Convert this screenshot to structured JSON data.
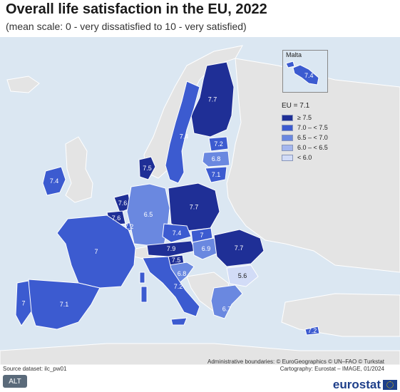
{
  "header": {
    "title": "Overall life satisfaction in the EU, 2022",
    "subtitle": "(mean scale: 0 - very dissatisfied to 10 - very satisfied)"
  },
  "legend": {
    "eu_average": "EU = 7.1",
    "classes": [
      {
        "label": "≥ 7.5",
        "color": "#1f2f96"
      },
      {
        "label": "7.0 – < 7.5",
        "color": "#3c5bd0"
      },
      {
        "label": "6.5 – < 7.0",
        "color": "#6a88e0"
      },
      {
        "label": "6.0 – < 6.5",
        "color": "#a4b6ee"
      },
      {
        "label": "< 6.0",
        "color": "#d2dcf7"
      }
    ]
  },
  "colors": {
    "sea": "#dbe7f2",
    "non_eu_land": "#e4e4e4",
    "border": "#ffffff",
    "label_dark_bg": "#ffffff",
    "label_light_bg": "#1a1a1a"
  },
  "countries": [
    {
      "name": "Finland",
      "value": "7.7",
      "class": 0
    },
    {
      "name": "Sweden",
      "value": "7.4",
      "class": 1
    },
    {
      "name": "Estonia",
      "value": "7.2",
      "class": 1
    },
    {
      "name": "Latvia",
      "value": "6.8",
      "class": 2
    },
    {
      "name": "Lithuania",
      "value": "7.1",
      "class": 1
    },
    {
      "name": "Denmark",
      "value": "7.5",
      "class": 0
    },
    {
      "name": "Ireland",
      "value": "7.4",
      "class": 1
    },
    {
      "name": "Netherlands",
      "value": "7.6",
      "class": 0
    },
    {
      "name": "Belgium",
      "value": "7.6",
      "class": 0
    },
    {
      "name": "Luxembourg",
      "value": "7.2",
      "class": 1
    },
    {
      "name": "Germany",
      "value": "6.5",
      "class": 2
    },
    {
      "name": "Poland",
      "value": "7.7",
      "class": 0
    },
    {
      "name": "Czechia",
      "value": "7.4",
      "class": 1
    },
    {
      "name": "Slovakia",
      "value": "7",
      "class": 1
    },
    {
      "name": "Austria",
      "value": "7.9",
      "class": 0
    },
    {
      "name": "Hungary",
      "value": "6.9",
      "class": 2
    },
    {
      "name": "Slovenia",
      "value": "7.5",
      "class": 0
    },
    {
      "name": "Croatia",
      "value": "6.8",
      "class": 2
    },
    {
      "name": "Romania",
      "value": "7.7",
      "class": 0
    },
    {
      "name": "Bulgaria",
      "value": "5.6",
      "class": 4
    },
    {
      "name": "France",
      "value": "7",
      "class": 1
    },
    {
      "name": "Italy",
      "value": "7.2",
      "class": 1
    },
    {
      "name": "Spain",
      "value": "7.1",
      "class": 1
    },
    {
      "name": "Portugal",
      "value": "7",
      "class": 1
    },
    {
      "name": "Greece",
      "value": "6.7",
      "class": 2
    },
    {
      "name": "Malta",
      "value": "7.4",
      "class": 1
    },
    {
      "name": "Cyprus",
      "value": "7.2",
      "class": 1
    }
  ],
  "inset": {
    "label": "Malta",
    "value": "7.4"
  },
  "footer": {
    "boundaries": "Administrative boundaries: © EuroGeographics © UN–FAO © Turkstat",
    "cartography": "Cartography: Eurostat – IMAGE, 01/2024",
    "source": "Source dataset: ilc_pw01",
    "alt_label": "ALT",
    "brand": "eurostat"
  }
}
